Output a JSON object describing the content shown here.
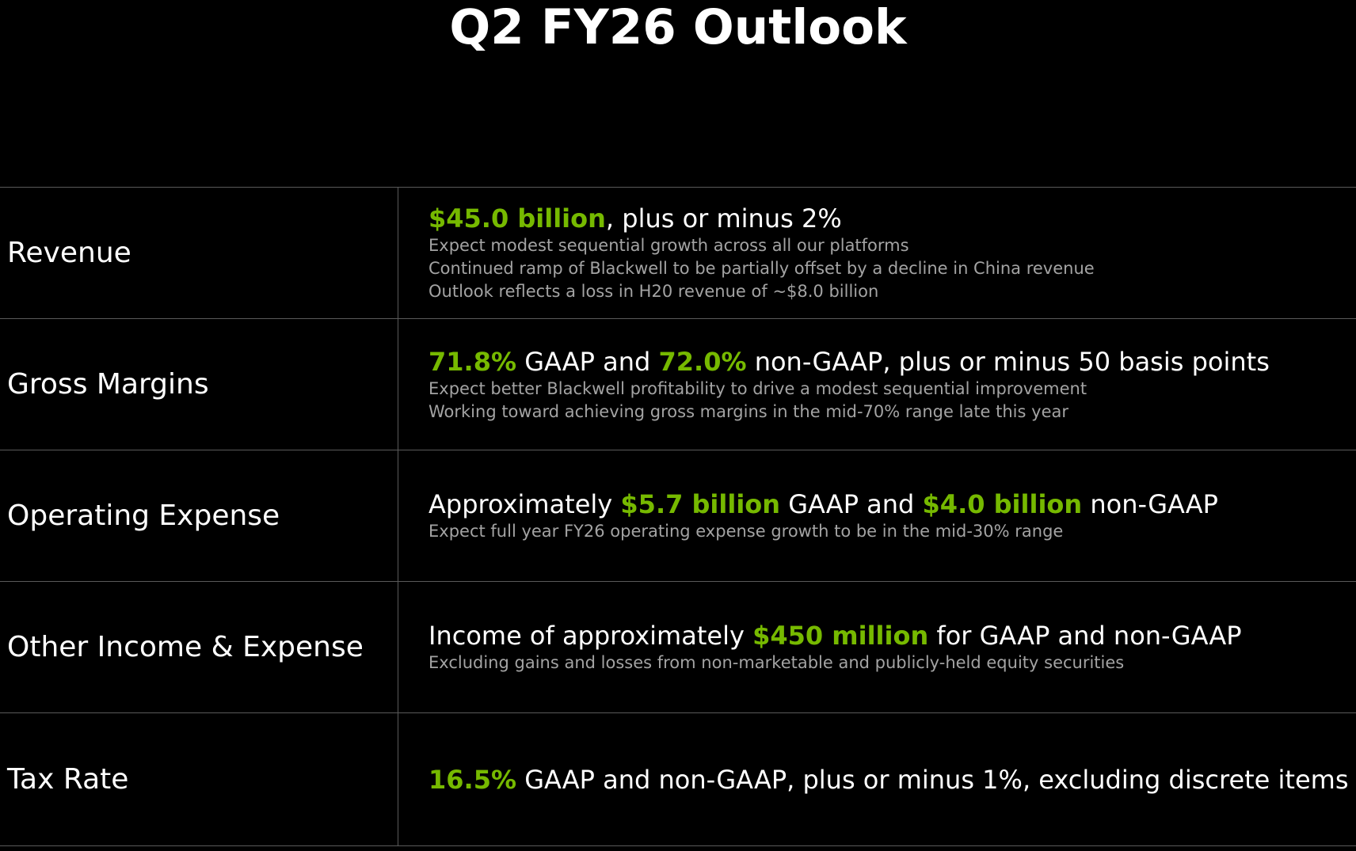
{
  "title": "Q2 FY26 Outlook",
  "colors": {
    "background": "#000000",
    "accent_green": "#76b900",
    "text_primary": "#ffffff",
    "text_secondary": "#a3a3a3",
    "divider": "#5a5a5a"
  },
  "rows": [
    {
      "label": "Revenue",
      "headline": {
        "p1": "$45.0 billion",
        "p2": ", plus or minus 2%"
      },
      "details": [
        "Expect modest sequential growth across all our platforms",
        "Continued ramp of Blackwell to be partially offset by a decline in China revenue",
        "Outlook reflects a loss in H20 revenue of ~$8.0 billion"
      ]
    },
    {
      "label": "Gross Margins",
      "headline": {
        "p1": "71.8%",
        "p2": " GAAP and ",
        "p3": "72.0%",
        "p4": " non-GAAP, plus or minus 50 basis points"
      },
      "details": [
        "Expect better Blackwell profitability to drive a modest sequential improvement",
        "Working toward achieving gross margins in the mid-70% range late this year"
      ]
    },
    {
      "label": "Operating Expense",
      "headline": {
        "p1": "Approximately ",
        "p2": "$5.7 billion",
        "p3": " GAAP and ",
        "p4": "$4.0 billion",
        "p5": " non-GAAP"
      },
      "details": [
        "Expect full year FY26 operating expense growth to be in the mid-30% range"
      ]
    },
    {
      "label": "Other Income & Expense",
      "headline": {
        "p1": "Income of approximately ",
        "p2": "$450 million",
        "p3": " for GAAP and non-GAAP"
      },
      "details": [
        "Excluding gains and losses from non-marketable and publicly-held equity securities"
      ]
    },
    {
      "label": "Tax Rate",
      "headline": {
        "p1": "16.5%",
        "p2": " GAAP and non-GAAP, plus or minus 1%, excluding discrete items"
      },
      "details": []
    }
  ]
}
